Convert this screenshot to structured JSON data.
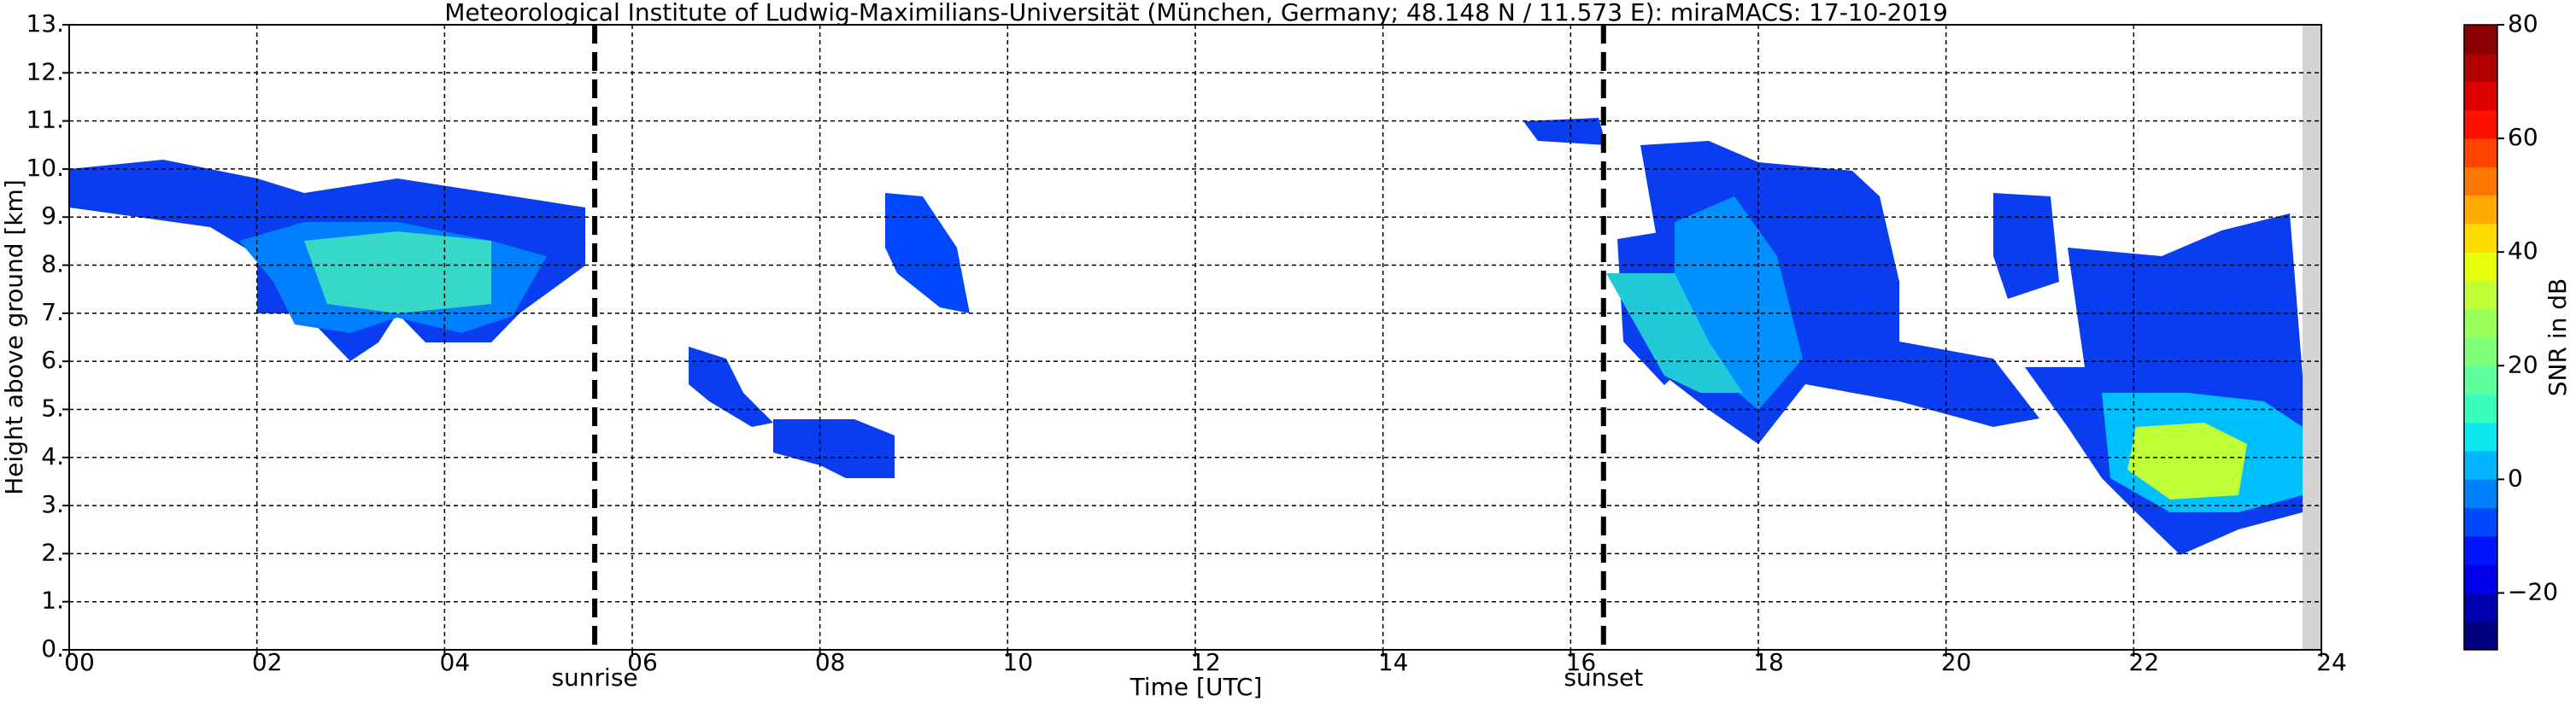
{
  "chart_data": {
    "type": "heatmap",
    "title": "Meteorological Institute of Ludwig-Maximilians-Universität (München, Germany; 48.148 N / 11.573 E):    miraMACS: 17-10-2019",
    "xlabel": "Time [UTC]",
    "ylabel": "Height above ground [km]",
    "xlim": [
      0,
      24
    ],
    "xticks": [
      {
        "value": 0,
        "label": "00"
      },
      {
        "value": 2,
        "label": "02"
      },
      {
        "value": 4,
        "label": "04"
      },
      {
        "value": 6,
        "label": "06"
      },
      {
        "value": 8,
        "label": "08"
      },
      {
        "value": 10,
        "label": "10"
      },
      12,
      14,
      16,
      18,
      20,
      22,
      24
    ],
    "ylim": [
      0,
      13
    ],
    "yticks": [
      {
        "value": 0,
        "label": "0."
      },
      {
        "value": 1,
        "label": "1."
      },
      {
        "value": 2,
        "label": "2."
      },
      {
        "value": 3,
        "label": "3."
      },
      {
        "value": 4,
        "label": "4."
      },
      {
        "value": 5,
        "label": "5."
      },
      {
        "value": 6,
        "label": "6."
      },
      {
        "value": 7,
        "label": "7."
      },
      {
        "value": 8,
        "label": "8."
      },
      {
        "value": 9,
        "label": "9."
      },
      {
        "value": 10,
        "label": "10."
      },
      {
        "value": 11,
        "label": "11."
      },
      {
        "value": 12,
        "label": "12."
      },
      {
        "value": 13,
        "label": "13."
      }
    ],
    "grid": true,
    "vlines": [
      {
        "x": 5.6,
        "label": "sunrise"
      },
      {
        "x": 16.35,
        "label": "sunset"
      }
    ],
    "colorbar": {
      "label": "SNR in dB",
      "lim": [
        -30,
        80
      ],
      "ticks": [
        {
          "value": -20,
          "label": "−20"
        },
        0,
        20,
        40,
        60,
        80
      ],
      "colors": [
        "#00007f",
        "#0000b2",
        "#0000ea",
        "#0014ff",
        "#0048ff",
        "#0080ff",
        "#00b4ff",
        "#0ce8f0",
        "#38ffbe",
        "#5cff9a",
        "#7cff7a",
        "#9aff5c",
        "#beff38",
        "#e6ff0c",
        "#ffdc00",
        "#ffaa00",
        "#ff7700",
        "#ff4400",
        "#ff1000",
        "#dc0000",
        "#b20000",
        "#8b0000"
      ]
    }
  }
}
